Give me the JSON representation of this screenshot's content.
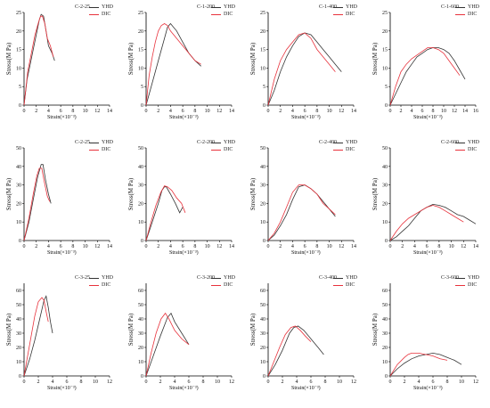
{
  "colors": {
    "YHD": "#333333",
    "DIC": "#e8323c"
  },
  "chart_data": [
    {
      "type": "line",
      "title": "C-2-25",
      "ylabel": "Stress(M Pa)",
      "xlabel": "Strain(×10⁻³)",
      "xlim": [
        0,
        14
      ],
      "ylim": [
        0,
        25
      ],
      "xticks": [
        "0",
        "2",
        "4",
        "6",
        "8",
        "10",
        "12",
        "14"
      ],
      "yticks": [
        "0",
        "5",
        "10",
        "15",
        "20",
        "25"
      ],
      "series": [
        {
          "name": "YHD",
          "x": [
            0,
            0.5,
            1,
            1.5,
            2,
            2.5,
            2.8,
            3.2,
            3.6,
            4,
            4.6,
            5
          ],
          "y": [
            0,
            7,
            11,
            15,
            19,
            23,
            24.5,
            24,
            20,
            16,
            14,
            12
          ]
        },
        {
          "name": "DIC",
          "x": [
            0,
            0.6,
            1.2,
            1.8,
            2.3,
            2.7,
            3,
            3.4,
            3.8,
            4.3,
            4.8
          ],
          "y": [
            0,
            9,
            14,
            19,
            22,
            24,
            24,
            22,
            18,
            16,
            13
          ]
        }
      ]
    },
    {
      "type": "line",
      "title": "C-1-200",
      "ylabel": "Stress(M Pa)",
      "xlabel": "Strain(×10⁻³)",
      "xlim": [
        0,
        14
      ],
      "ylim": [
        0,
        25
      ],
      "xticks": [
        "0",
        "2",
        "4",
        "6",
        "8",
        "10",
        "12",
        "14"
      ],
      "yticks": [
        "0",
        "5",
        "10",
        "15",
        "20",
        "25"
      ],
      "series": [
        {
          "name": "YHD",
          "x": [
            0,
            1,
            2,
            3,
            3.5,
            4,
            5,
            6,
            7,
            8,
            9
          ],
          "y": [
            0,
            6,
            12,
            18,
            21,
            22,
            20,
            17,
            14,
            12,
            10.5
          ]
        },
        {
          "name": "DIC",
          "x": [
            0,
            0.5,
            1,
            1.5,
            2,
            2.5,
            3,
            3.5,
            4,
            5,
            6,
            7,
            8,
            9
          ],
          "y": [
            0,
            8,
            13,
            17,
            20,
            21.5,
            22,
            21.5,
            20,
            18,
            16,
            14,
            12,
            11
          ]
        }
      ]
    },
    {
      "type": "line",
      "title": "C-1-400",
      "ylabel": "Stress(M Pa)",
      "xlabel": "Strain(×10⁻³)",
      "xlim": [
        0,
        14
      ],
      "ylim": [
        0,
        25
      ],
      "xticks": [
        "0",
        "2",
        "4",
        "6",
        "8",
        "10",
        "12",
        "14"
      ],
      "yticks": [
        "0",
        "5",
        "10",
        "15",
        "20",
        "25"
      ],
      "series": [
        {
          "name": "YHD",
          "x": [
            0,
            1,
            2,
            3,
            4,
            5,
            6,
            7,
            8,
            9,
            10,
            11,
            12
          ],
          "y": [
            0,
            4,
            9,
            13,
            16,
            18.5,
            19.5,
            19,
            17,
            15,
            13,
            11,
            9
          ]
        },
        {
          "name": "DIC",
          "x": [
            0,
            1,
            2,
            3,
            4,
            5,
            6,
            7,
            8,
            9,
            10,
            11
          ],
          "y": [
            0,
            7,
            12,
            15,
            17,
            19,
            19.5,
            18,
            15,
            13,
            11,
            9
          ]
        }
      ]
    },
    {
      "type": "line",
      "title": "C-1-600",
      "ylabel": "Stress(M Pa)",
      "xlabel": "Strain(×10⁻³)",
      "xlim": [
        0,
        16
      ],
      "ylim": [
        0,
        25
      ],
      "xticks": [
        "0",
        "2",
        "4",
        "6",
        "8",
        "10",
        "12",
        "14",
        "16"
      ],
      "yticks": [
        "0",
        "5",
        "10",
        "15",
        "20",
        "25"
      ],
      "series": [
        {
          "name": "YHD",
          "x": [
            0,
            1,
            2,
            3,
            4,
            5,
            6,
            7,
            8,
            9,
            10,
            11,
            12,
            13,
            14
          ],
          "y": [
            0,
            3,
            6,
            9,
            11,
            13,
            14,
            15,
            15.5,
            15.5,
            15,
            14,
            12,
            9.5,
            7
          ]
        },
        {
          "name": "DIC",
          "x": [
            0,
            1,
            2,
            3,
            4,
            5,
            6,
            7,
            8,
            9,
            10,
            11,
            12,
            13
          ],
          "y": [
            0,
            5,
            9,
            11,
            12.5,
            13.5,
            14.5,
            15.5,
            15.5,
            15,
            14,
            12,
            10,
            8
          ]
        }
      ]
    },
    {
      "type": "line",
      "title": "C-2-25",
      "ylabel": "Stress(M Pa)",
      "xlabel": "Strain(×10⁻³)",
      "xlim": [
        0,
        14
      ],
      "ylim": [
        0,
        50
      ],
      "xticks": [
        "0",
        "2",
        "4",
        "6",
        "8",
        "10",
        "12",
        "14"
      ],
      "yticks": [
        "0",
        "10",
        "20",
        "30",
        "40",
        "50"
      ],
      "series": [
        {
          "name": "YHD",
          "x": [
            0,
            0.8,
            1.5,
            2.2,
            2.8,
            3.1,
            3.5,
            4,
            4.4
          ],
          "y": [
            0,
            10,
            22,
            34,
            41,
            41,
            33,
            25,
            20
          ]
        },
        {
          "name": "DIC",
          "x": [
            0,
            0.8,
            1.5,
            2.1,
            2.5,
            2.9,
            3.3,
            3.8,
            4.2
          ],
          "y": [
            0,
            12,
            25,
            35,
            39,
            39,
            32,
            24,
            21
          ]
        }
      ]
    },
    {
      "type": "line",
      "title": "C-2-200",
      "ylabel": "Stress(M Pa)",
      "xlabel": "Strain(×10⁻³)",
      "xlim": [
        0,
        14
      ],
      "ylim": [
        0,
        50
      ],
      "xticks": [
        "0",
        "2",
        "4",
        "6",
        "8",
        "10",
        "12",
        "14"
      ],
      "yticks": [
        "0",
        "10",
        "20",
        "30",
        "40",
        "50"
      ],
      "series": [
        {
          "name": "YHD",
          "x": [
            0,
            1,
            2,
            2.6,
            3,
            3.3,
            4,
            4.8,
            5.5,
            6
          ],
          "y": [
            0,
            10,
            20,
            27,
            29,
            29,
            25,
            20,
            15,
            18
          ]
        },
        {
          "name": "DIC",
          "x": [
            0,
            0.8,
            1.6,
            2.4,
            3,
            3.5,
            4.2,
            5,
            5.8,
            6.4
          ],
          "y": [
            0,
            10,
            19,
            26,
            29.5,
            29,
            27,
            23,
            20,
            15
          ]
        }
      ]
    },
    {
      "type": "line",
      "title": "C-2-400",
      "ylabel": "Stress(M Pa)",
      "xlabel": "Strain(×10⁻³)",
      "xlim": [
        0,
        14
      ],
      "ylim": [
        0,
        50
      ],
      "xticks": [
        "0",
        "2",
        "4",
        "6",
        "8",
        "10",
        "12",
        "14"
      ],
      "yticks": [
        "0",
        "10",
        "20",
        "30",
        "40",
        "50"
      ],
      "series": [
        {
          "name": "YHD",
          "x": [
            0,
            1,
            2,
            3,
            4,
            5,
            6,
            7,
            8,
            9,
            10,
            11
          ],
          "y": [
            0,
            3,
            8,
            14,
            22,
            29,
            30,
            28,
            25,
            21,
            17,
            13
          ]
        },
        {
          "name": "DIC",
          "x": [
            0,
            1,
            2,
            3,
            4,
            5,
            6,
            7,
            8,
            9,
            10,
            11
          ],
          "y": [
            0,
            4,
            10,
            18,
            26,
            30,
            30,
            28,
            25,
            20,
            17,
            14
          ]
        }
      ]
    },
    {
      "type": "line",
      "title": "C-2-600",
      "ylabel": "Stress(M Pa)",
      "xlabel": "Strain(×10⁻³)",
      "xlim": [
        0,
        14
      ],
      "ylim": [
        0,
        50
      ],
      "xticks": [
        "0",
        "2",
        "4",
        "6",
        "8",
        "10",
        "12",
        "14"
      ],
      "yticks": [
        "0",
        "10",
        "20",
        "30",
        "40",
        "50"
      ],
      "series": [
        {
          "name": "YHD",
          "x": [
            0,
            1,
            2,
            3,
            4,
            5,
            6,
            7,
            8,
            9,
            10,
            11,
            12,
            13,
            14
          ],
          "y": [
            0,
            2,
            5,
            8,
            12,
            16,
            18,
            19.5,
            19,
            18,
            16,
            14,
            13,
            11,
            9
          ]
        },
        {
          "name": "DIC",
          "x": [
            0,
            1,
            2,
            3,
            4,
            5,
            6,
            7,
            8,
            9,
            10,
            11,
            12
          ],
          "y": [
            0,
            5,
            9,
            12,
            14,
            16,
            18,
            19,
            18,
            16,
            14,
            12,
            10
          ]
        }
      ]
    },
    {
      "type": "line",
      "title": "C-3-25",
      "ylabel": "Stress(M Pa)",
      "xlabel": "Strain(×10⁻³)",
      "xlim": [
        0,
        12
      ],
      "ylim": [
        0,
        65
      ],
      "xticks": [
        "0",
        "2",
        "4",
        "6",
        "8",
        "10",
        "12"
      ],
      "yticks": [
        "0",
        "10",
        "20",
        "30",
        "40",
        "50",
        "60"
      ],
      "series": [
        {
          "name": "YHD",
          "x": [
            0,
            0.8,
            1.5,
            2.2,
            2.8,
            3.1,
            3.4,
            3.7,
            4
          ],
          "y": [
            0,
            12,
            25,
            40,
            53,
            56,
            48,
            38,
            30
          ]
        },
        {
          "name": "DIC",
          "x": [
            0,
            0.5,
            1,
            1.5,
            2,
            2.5,
            2.8,
            3.1,
            3.4
          ],
          "y": [
            0,
            14,
            28,
            42,
            52,
            55,
            53,
            45,
            38
          ]
        }
      ]
    },
    {
      "type": "line",
      "title": "C-3-200",
      "ylabel": "Stress(M Pa)",
      "xlabel": "Strain(×10⁻³)",
      "xlim": [
        0,
        12
      ],
      "ylim": [
        0,
        65
      ],
      "xticks": [
        "0",
        "2",
        "4",
        "6",
        "8",
        "10",
        "12"
      ],
      "yticks": [
        "0",
        "10",
        "20",
        "30",
        "40",
        "50",
        "60"
      ],
      "series": [
        {
          "name": "YHD",
          "x": [
            0,
            1,
            2,
            3,
            3.5,
            4,
            5,
            6
          ],
          "y": [
            0,
            14,
            28,
            41,
            44,
            38,
            30,
            22
          ]
        },
        {
          "name": "DIC",
          "x": [
            0,
            0.7,
            1.4,
            2.1,
            2.7,
            3.2,
            4,
            5,
            6
          ],
          "y": [
            0,
            16,
            30,
            40,
            44,
            40,
            32,
            26,
            22
          ]
        }
      ]
    },
    {
      "type": "line",
      "title": "C-3-400",
      "ylabel": "Stress(M Pa)",
      "xlabel": "Strain(×10⁻³)",
      "xlim": [
        0,
        12
      ],
      "ylim": [
        0,
        65
      ],
      "xticks": [
        "0",
        "2",
        "4",
        "6",
        "8",
        "10",
        "12"
      ],
      "yticks": [
        "0",
        "10",
        "20",
        "30",
        "40",
        "50",
        "60"
      ],
      "series": [
        {
          "name": "YHD",
          "x": [
            0,
            1,
            2,
            3,
            3.6,
            4.2,
            5,
            6,
            7,
            7.8
          ],
          "y": [
            0,
            8,
            18,
            30,
            34,
            35,
            32,
            26,
            20,
            15
          ]
        },
        {
          "name": "DIC",
          "x": [
            0,
            0.8,
            1.6,
            2.4,
            3.2,
            3.8,
            4.5,
            5.2,
            6
          ],
          "y": [
            0,
            10,
            20,
            29,
            34,
            35,
            32,
            28,
            24
          ]
        }
      ]
    },
    {
      "type": "line",
      "title": "C-3-600",
      "ylabel": "Stress(M Pa)",
      "xlabel": "Strain(×10⁻³)",
      "xlim": [
        0,
        12
      ],
      "ylim": [
        0,
        65
      ],
      "xticks": [
        "0",
        "2",
        "4",
        "6",
        "8",
        "10",
        "12"
      ],
      "yticks": [
        "0",
        "10",
        "20",
        "30",
        "40",
        "50",
        "60"
      ],
      "series": [
        {
          "name": "YHD",
          "x": [
            0,
            1,
            2,
            3,
            4,
            5,
            6,
            7,
            8,
            9,
            10
          ],
          "y": [
            0,
            5,
            9,
            12,
            14,
            15,
            16,
            15,
            13,
            11,
            8
          ]
        },
        {
          "name": "DIC",
          "x": [
            0,
            1,
            2,
            2.5,
            3,
            4,
            5,
            6,
            7,
            8
          ],
          "y": [
            0,
            8,
            13,
            15,
            16,
            16,
            15,
            14,
            12,
            11
          ]
        }
      ]
    }
  ]
}
